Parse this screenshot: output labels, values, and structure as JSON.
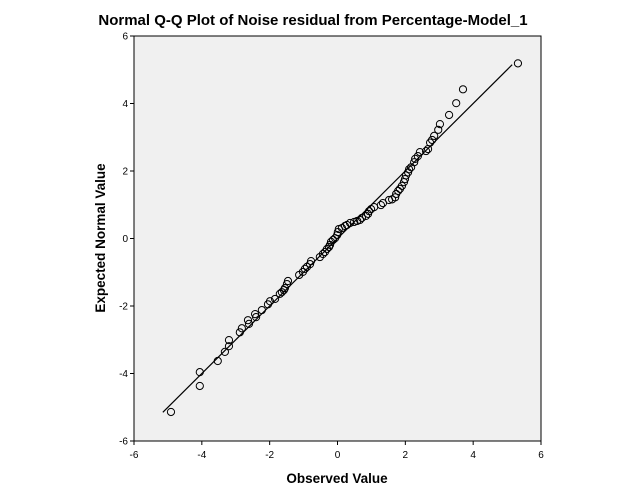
{
  "chart_data": {
    "type": "scatter",
    "title": "Normal Q-Q Plot of Noise residual from Percentage-Model_1",
    "xlabel": "Observed Value",
    "ylabel": "Expected Normal Value",
    "xlim": [
      -6,
      6
    ],
    "ylim": [
      -6,
      6
    ],
    "xticks": [
      "-6",
      "-4",
      "-2",
      "0",
      "2",
      "4",
      "6"
    ],
    "yticks": [
      "-6",
      "-4",
      "-2",
      "0",
      "2",
      "4",
      "6"
    ],
    "grid": false,
    "reference_line": {
      "from": [
        -5.15,
        -5.15
      ],
      "to": [
        5.15,
        5.15
      ]
    },
    "points": [
      [
        -4.91,
        -5.14
      ],
      [
        -4.06,
        -4.37
      ],
      [
        -4.06,
        -3.96
      ],
      [
        -3.53,
        -3.63
      ],
      [
        -3.32,
        -3.36
      ],
      [
        -3.2,
        -3.19
      ],
      [
        -3.2,
        -3.01
      ],
      [
        -2.88,
        -2.78
      ],
      [
        -2.82,
        -2.66
      ],
      [
        -2.64,
        -2.42
      ],
      [
        -2.61,
        -2.53
      ],
      [
        -2.43,
        -2.24
      ],
      [
        -2.4,
        -2.33
      ],
      [
        -2.23,
        -2.12
      ],
      [
        -2.05,
        -1.95
      ],
      [
        -1.99,
        -1.86
      ],
      [
        -1.84,
        -1.79
      ],
      [
        -1.7,
        -1.64
      ],
      [
        -1.64,
        -1.59
      ],
      [
        -1.58,
        -1.53
      ],
      [
        -1.55,
        -1.47
      ],
      [
        -1.49,
        -1.35
      ],
      [
        -1.46,
        -1.26
      ],
      [
        -1.13,
        -1.08
      ],
      [
        -1.02,
        -0.99
      ],
      [
        -0.96,
        -0.9
      ],
      [
        -0.9,
        -0.84
      ],
      [
        -0.81,
        -0.76
      ],
      [
        -0.78,
        -0.67
      ],
      [
        -0.52,
        -0.55
      ],
      [
        -0.43,
        -0.46
      ],
      [
        -0.37,
        -0.4
      ],
      [
        -0.31,
        -0.31
      ],
      [
        -0.25,
        -0.25
      ],
      [
        -0.22,
        -0.19
      ],
      [
        -0.19,
        -0.1
      ],
      [
        -0.13,
        -0.04
      ],
      [
        -0.07,
        0.01
      ],
      [
        -0.01,
        0.1
      ],
      [
        0.01,
        0.19
      ],
      [
        0.04,
        0.28
      ],
      [
        0.13,
        0.31
      ],
      [
        0.22,
        0.37
      ],
      [
        0.28,
        0.4
      ],
      [
        0.37,
        0.46
      ],
      [
        0.49,
        0.49
      ],
      [
        0.58,
        0.52
      ],
      [
        0.66,
        0.55
      ],
      [
        0.72,
        0.61
      ],
      [
        0.84,
        0.67
      ],
      [
        0.9,
        0.73
      ],
      [
        0.93,
        0.81
      ],
      [
        0.99,
        0.87
      ],
      [
        1.08,
        0.93
      ],
      [
        1.28,
        0.99
      ],
      [
        1.34,
        1.05
      ],
      [
        1.52,
        1.14
      ],
      [
        1.61,
        1.16
      ],
      [
        1.7,
        1.22
      ],
      [
        1.73,
        1.32
      ],
      [
        1.79,
        1.41
      ],
      [
        1.84,
        1.47
      ],
      [
        1.9,
        1.56
      ],
      [
        1.96,
        1.67
      ],
      [
        1.99,
        1.76
      ],
      [
        2.02,
        1.87
      ],
      [
        2.08,
        1.96
      ],
      [
        2.11,
        2.05
      ],
      [
        2.17,
        2.11
      ],
      [
        2.26,
        2.26
      ],
      [
        2.29,
        2.36
      ],
      [
        2.37,
        2.44
      ],
      [
        2.43,
        2.56
      ],
      [
        2.61,
        2.59
      ],
      [
        2.67,
        2.65
      ],
      [
        2.73,
        2.84
      ],
      [
        2.79,
        2.92
      ],
      [
        2.85,
        3.04
      ],
      [
        2.97,
        3.22
      ],
      [
        3.02,
        3.39
      ],
      [
        3.29,
        3.66
      ],
      [
        3.5,
        4.01
      ],
      [
        3.7,
        4.42
      ],
      [
        5.32,
        5.19
      ]
    ]
  }
}
